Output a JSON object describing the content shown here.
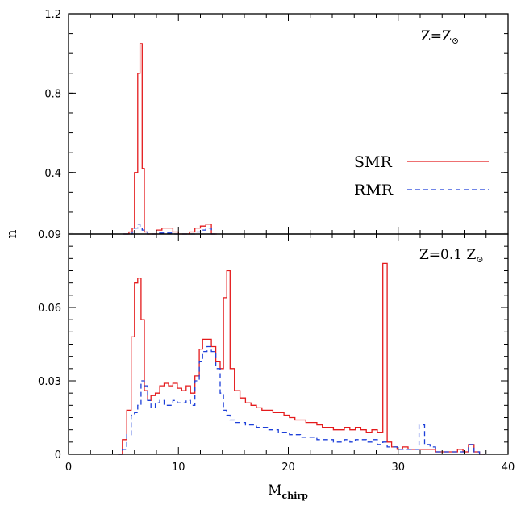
{
  "chart_data": [
    {
      "type": "step",
      "panel": "top",
      "annotation": {
        "main": "Z=Z",
        "sub": "⊙"
      },
      "ylim": [
        0.09,
        1.2
      ],
      "yticks": [
        {
          "v": 0.09,
          "label": "0.09"
        },
        {
          "v": 0.4,
          "label": "0.4"
        },
        {
          "v": 0.8,
          "label": "0.8"
        },
        {
          "v": 1.2,
          "label": "1.2"
        }
      ],
      "xlim": [
        0,
        40
      ],
      "series": [
        {
          "name": "SMR",
          "color": "#e41a1c",
          "dash": "solid",
          "bin_edges": [
            5.0,
            5.5,
            5.8,
            6.0,
            6.3,
            6.5,
            6.7,
            6.9,
            7.2,
            7.5,
            8.0,
            8.5,
            9.0,
            9.5,
            10.0,
            10.5,
            11.0,
            11.5,
            12.0,
            12.5,
            13.0,
            13.5
          ],
          "values": [
            0.09,
            0.1,
            0.12,
            0.4,
            0.9,
            1.05,
            0.42,
            0.1,
            0.09,
            0.09,
            0.11,
            0.12,
            0.12,
            0.1,
            0.09,
            0.09,
            0.1,
            0.12,
            0.13,
            0.14,
            0.09
          ]
        },
        {
          "name": "RMR",
          "color": "#1c3fd9",
          "dash": "dashed",
          "bin_edges": [
            5.0,
            5.5,
            5.8,
            6.0,
            6.3,
            6.5,
            6.7,
            6.9,
            7.2,
            7.5,
            8.0,
            8.5,
            9.0,
            9.5,
            10.0,
            10.5,
            11.0,
            11.5,
            12.0,
            12.5,
            13.0,
            13.5
          ],
          "values": [
            0.09,
            0.09,
            0.1,
            0.12,
            0.14,
            0.13,
            0.11,
            0.1,
            0.09,
            0.09,
            0.095,
            0.095,
            0.095,
            0.09,
            0.09,
            0.09,
            0.09,
            0.1,
            0.11,
            0.12,
            0.09
          ]
        }
      ]
    },
    {
      "type": "step",
      "panel": "bottom",
      "annotation": {
        "main": "Z=0.1 Z",
        "sub": "⊙"
      },
      "ylim": [
        0,
        0.09
      ],
      "yticks": [
        {
          "v": 0,
          "label": "0"
        },
        {
          "v": 0.03,
          "label": "0.03"
        },
        {
          "v": 0.06,
          "label": "0.06"
        }
      ],
      "xlim": [
        0,
        40
      ],
      "xticks": [
        {
          "v": 0,
          "label": "0"
        },
        {
          "v": 10,
          "label": "10"
        },
        {
          "v": 20,
          "label": "20"
        },
        {
          "v": 30,
          "label": "30"
        },
        {
          "v": 40,
          "label": "40"
        }
      ],
      "series": [
        {
          "name": "SMR",
          "color": "#e41a1c",
          "dash": "solid",
          "bin_edges": [
            4.5,
            4.9,
            5.3,
            5.7,
            6.0,
            6.3,
            6.6,
            6.9,
            7.2,
            7.5,
            7.9,
            8.3,
            8.7,
            9.1,
            9.5,
            9.9,
            10.3,
            10.7,
            11.1,
            11.5,
            11.9,
            12.2,
            12.6,
            13.0,
            13.4,
            13.8,
            14.1,
            14.4,
            14.7,
            15.1,
            15.6,
            16.1,
            16.6,
            17.1,
            17.6,
            18.1,
            18.6,
            19.1,
            19.6,
            20.1,
            20.6,
            21.1,
            21.6,
            22.1,
            22.6,
            23.1,
            23.6,
            24.1,
            24.6,
            25.1,
            25.6,
            26.1,
            26.6,
            27.1,
            27.6,
            28.1,
            28.6,
            29.0,
            29.4,
            29.9,
            30.4,
            30.9,
            31.4,
            31.9,
            32.4,
            32.9,
            33.4,
            33.9,
            34.4,
            34.9,
            35.4,
            35.9,
            36.4,
            36.9,
            37.4,
            37.9
          ],
          "values": [
            0.0,
            0.006,
            0.018,
            0.048,
            0.07,
            0.072,
            0.055,
            0.026,
            0.022,
            0.024,
            0.025,
            0.028,
            0.029,
            0.028,
            0.029,
            0.027,
            0.026,
            0.028,
            0.025,
            0.032,
            0.043,
            0.047,
            0.047,
            0.044,
            0.038,
            0.035,
            0.064,
            0.075,
            0.035,
            0.026,
            0.023,
            0.021,
            0.02,
            0.019,
            0.018,
            0.018,
            0.017,
            0.017,
            0.016,
            0.015,
            0.014,
            0.014,
            0.013,
            0.013,
            0.012,
            0.011,
            0.011,
            0.01,
            0.01,
            0.011,
            0.01,
            0.011,
            0.01,
            0.009,
            0.01,
            0.009,
            0.078,
            0.005,
            0.003,
            0.002,
            0.003,
            0.002,
            0.002,
            0.002,
            0.002,
            0.002,
            0.001,
            0.001,
            0.001,
            0.001,
            0.002,
            0.001,
            0.004,
            0.001,
            0.0
          ]
        },
        {
          "name": "RMR",
          "color": "#1c3fd9",
          "dash": "dashed",
          "bin_edges": [
            4.5,
            4.9,
            5.3,
            5.7,
            6.0,
            6.3,
            6.6,
            6.9,
            7.2,
            7.5,
            7.9,
            8.3,
            8.7,
            9.1,
            9.5,
            9.9,
            10.3,
            10.7,
            11.1,
            11.5,
            11.9,
            12.2,
            12.6,
            13.0,
            13.4,
            13.8,
            14.1,
            14.4,
            14.7,
            15.1,
            15.6,
            16.1,
            16.6,
            17.1,
            17.6,
            18.1,
            18.6,
            19.1,
            19.6,
            20.1,
            20.6,
            21.1,
            21.6,
            22.1,
            22.6,
            23.1,
            23.6,
            24.1,
            24.6,
            25.1,
            25.6,
            26.1,
            26.6,
            27.1,
            27.6,
            28.1,
            28.6,
            29.0,
            29.4,
            29.9,
            30.4,
            30.9,
            31.4,
            31.9,
            32.4,
            32.9,
            33.4,
            33.9,
            34.4,
            34.9,
            35.4,
            35.9,
            36.4,
            36.9,
            37.4,
            37.9
          ],
          "values": [
            0.0,
            0.002,
            0.008,
            0.016,
            0.017,
            0.02,
            0.03,
            0.028,
            0.022,
            0.019,
            0.021,
            0.022,
            0.02,
            0.02,
            0.022,
            0.021,
            0.021,
            0.022,
            0.02,
            0.03,
            0.038,
            0.042,
            0.044,
            0.042,
            0.035,
            0.025,
            0.018,
            0.016,
            0.014,
            0.013,
            0.013,
            0.012,
            0.012,
            0.011,
            0.011,
            0.01,
            0.01,
            0.009,
            0.009,
            0.008,
            0.008,
            0.007,
            0.007,
            0.007,
            0.006,
            0.006,
            0.006,
            0.005,
            0.005,
            0.006,
            0.005,
            0.006,
            0.006,
            0.005,
            0.006,
            0.004,
            0.005,
            0.003,
            0.003,
            0.002,
            0.002,
            0.002,
            0.002,
            0.012,
            0.004,
            0.003,
            0.001,
            0.001,
            0.001,
            0.001,
            0.001,
            0.001,
            0.004,
            0.001,
            0.0
          ]
        }
      ]
    }
  ],
  "axes": {
    "xlabel": {
      "main": "M",
      "sub": "chirp"
    },
    "ylabel": "n"
  },
  "legend": [
    {
      "label": "SMR",
      "color": "#e41a1c",
      "dash": "solid"
    },
    {
      "label": "RMR",
      "color": "#1c3fd9",
      "dash": "dashed"
    }
  ]
}
